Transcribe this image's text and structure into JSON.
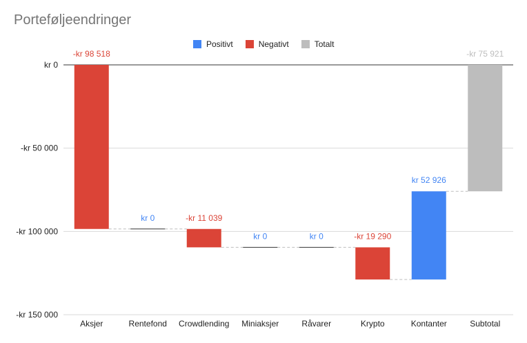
{
  "chart_data": {
    "type": "waterfall",
    "title": "Porteføljeendringer",
    "legend": [
      {
        "name": "Positivt",
        "color": "#4285f4"
      },
      {
        "name": "Negativt",
        "color": "#db4437"
      },
      {
        "name": "Totalt",
        "color": "#bdbdbd"
      }
    ],
    "categories": [
      "Aksjer",
      "Rentefond",
      "Crowdlending",
      "Miniaksjer",
      "Råvarer",
      "Krypto",
      "Kontanter",
      "Subtotal"
    ],
    "values": [
      -98518,
      0,
      -11039,
      0,
      0,
      -19290,
      52926,
      -75921
    ],
    "kinds": [
      "negative",
      "positive",
      "negative",
      "positive",
      "positive",
      "negative",
      "positive",
      "total"
    ],
    "data_labels": [
      "-kr 98 518",
      "kr 0",
      "-kr 11 039",
      "kr 0",
      "kr 0",
      "-kr 19 290",
      "kr 52 926",
      "-kr 75 921"
    ],
    "y_ticks": [
      0,
      -50000,
      -100000,
      -150000
    ],
    "y_tick_labels": [
      "kr 0",
      "-kr 50 000",
      "-kr 100 000",
      "-kr 150 000"
    ],
    "ylim": [
      -150000,
      0
    ],
    "grid": true,
    "legend_position": "top"
  }
}
